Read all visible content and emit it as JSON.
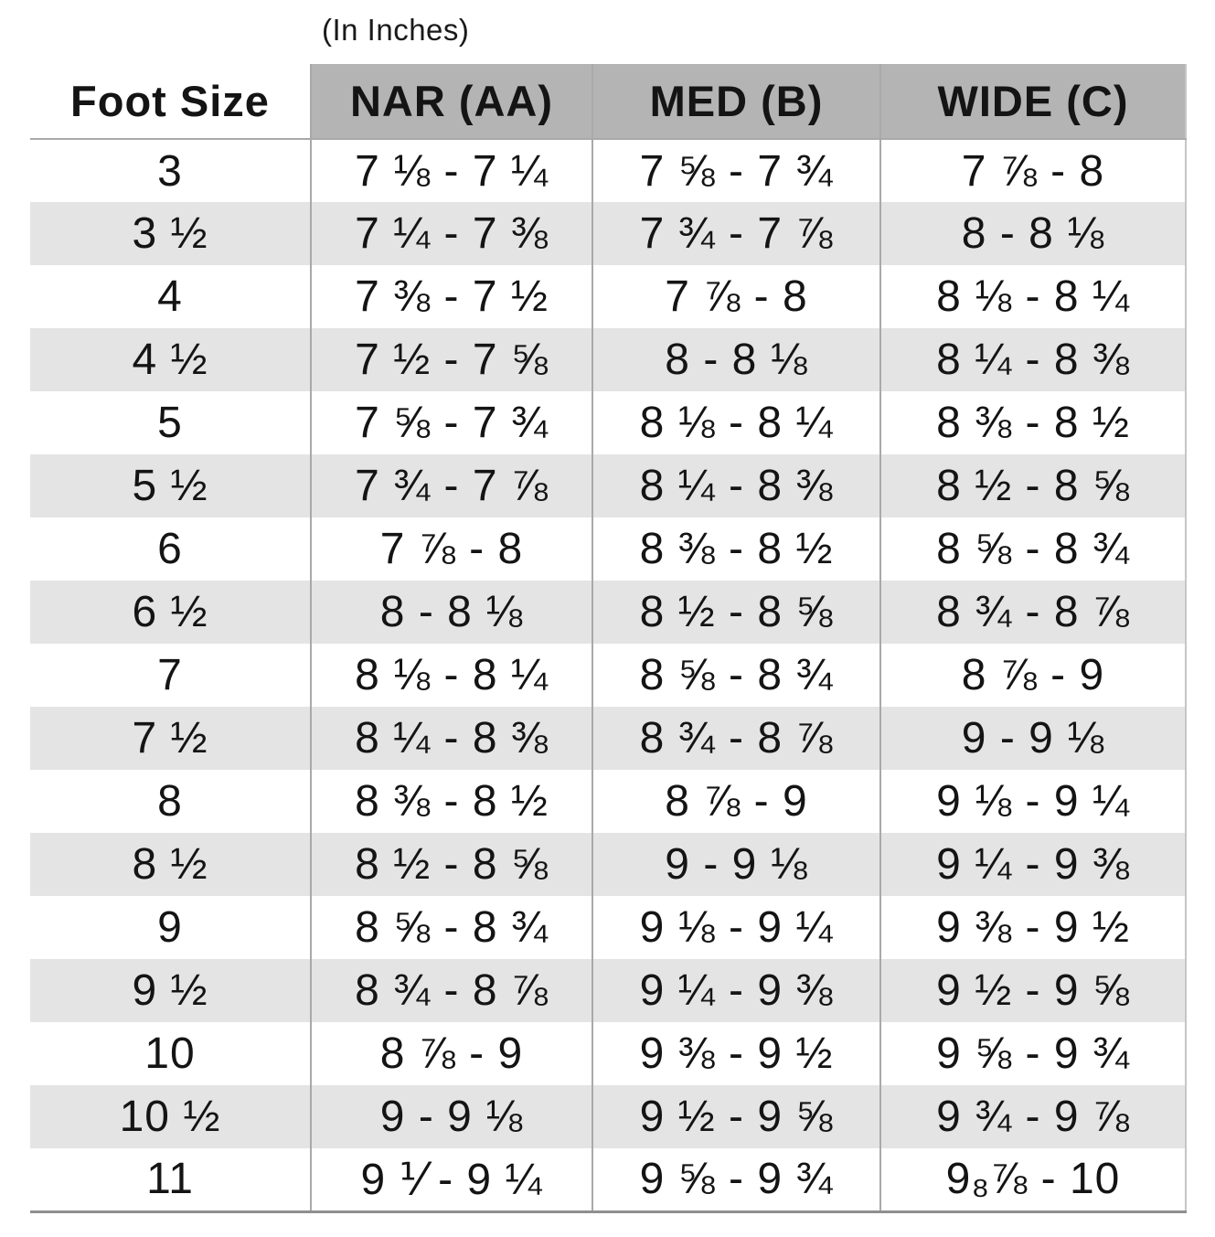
{
  "units_label": "(In Inches)",
  "colors": {
    "header_bg": "#b4b4b4",
    "stripe_bg": "#e4e4e4",
    "grid_line": "#a9a9a9",
    "bottom_border": "#8f8f8f",
    "text": "#141414"
  },
  "chart_data": {
    "type": "table",
    "columns": [
      "Foot Size",
      "NAR (AA)",
      "MED (B)",
      "WIDE (C)"
    ],
    "rows": [
      [
        "3",
        "7 ⅛ - 7 ¼",
        "7 ⅝ - 7 ¾",
        "7 ⅞ - 8"
      ],
      [
        "3 ½",
        "7 ¼ - 7 ⅜",
        "7 ¾ - 7 ⅞",
        "8 - 8 ⅛"
      ],
      [
        "4",
        "7 ⅜ - 7 ½",
        "7 ⅞ - 8",
        "8 ⅛ - 8 ¼"
      ],
      [
        "4 ½",
        "7 ½ - 7 ⅝",
        "8 - 8 ⅛",
        "8 ¼ - 8 ⅜"
      ],
      [
        "5",
        "7 ⅝ - 7 ¾",
        "8 ⅛ - 8 ¼",
        "8 ⅜ - 8 ½"
      ],
      [
        "5 ½",
        "7 ¾ - 7 ⅞",
        "8 ¼ - 8 ⅜",
        "8 ½ - 8 ⅝"
      ],
      [
        "6",
        "7 ⅞ - 8",
        "8 ⅜ - 8 ½",
        "8 ⅝ - 8 ¾"
      ],
      [
        "6 ½",
        "8 - 8 ⅛",
        "8 ½ - 8 ⅝",
        "8 ¾ - 8 ⅞"
      ],
      [
        "7",
        "8 ⅛ - 8 ¼",
        "8 ⅝ - 8 ¾",
        "8 ⅞ - 9"
      ],
      [
        "7 ½",
        "8 ¼ - 8 ⅜",
        "8 ¾ - 8 ⅞",
        "9 - 9 ⅛"
      ],
      [
        "8",
        "8 ⅜ - 8 ½",
        "8 ⅞ - 9",
        "9 ⅛ - 9 ¼"
      ],
      [
        "8 ½",
        "8 ½ - 8 ⅝",
        "9 - 9 ⅛",
        "9 ¼ - 9 ⅜"
      ],
      [
        "9",
        "8 ⅝ - 8 ¾",
        "9 ⅛ - 9 ¼",
        "9 ⅜ - 9 ½"
      ],
      [
        "9 ½",
        "8 ¾ - 8 ⅞",
        "9 ¼ - 9 ⅜",
        "9 ½ - 9 ⅝"
      ],
      [
        "10",
        "8 ⅞ - 9",
        "9 ⅜ - 9 ½",
        "9 ⅝ - 9 ¾"
      ],
      [
        "10 ½",
        "9 - 9 ⅛",
        "9 ½ - 9 ⅝",
        "9 ¾ - 9 ⅞"
      ],
      [
        "11",
        "9 ⅟ - 9 ¼",
        "9 ⅝ - 9 ¾",
        "9₈⅞ - 10"
      ]
    ]
  }
}
